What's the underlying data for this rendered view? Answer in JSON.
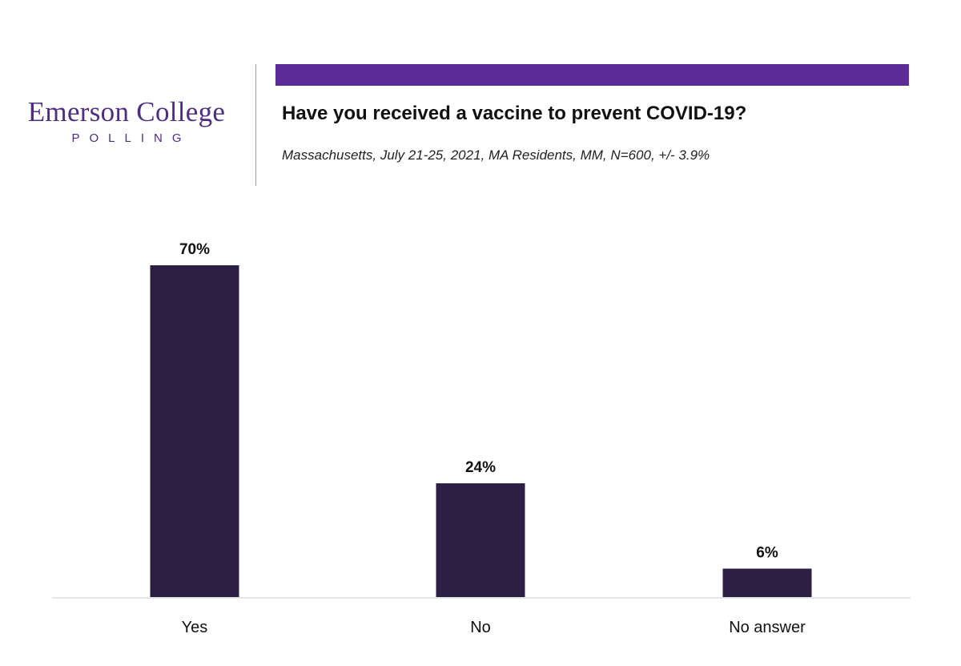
{
  "branding": {
    "name": "Emerson College",
    "subtitle": "POLLING",
    "color": "#4f2d7f"
  },
  "header": {
    "accent_color": "#5b2c96"
  },
  "chart_data": {
    "type": "bar",
    "title": "Have you received a vaccine to prevent COVID-19?",
    "subtitle": "Massachusetts, July 21-25, 2021, MA Residents, MM, N=600, +/- 3.9%",
    "categories": [
      "Yes",
      "No",
      "No answer"
    ],
    "values": [
      70,
      24,
      6
    ],
    "value_labels": [
      "70%",
      "24%",
      "6%"
    ],
    "ylim": [
      0,
      70
    ],
    "grid": false,
    "legend": "none",
    "bar_color": "#2d1f44",
    "baseline_color": "#e6e6e6"
  }
}
